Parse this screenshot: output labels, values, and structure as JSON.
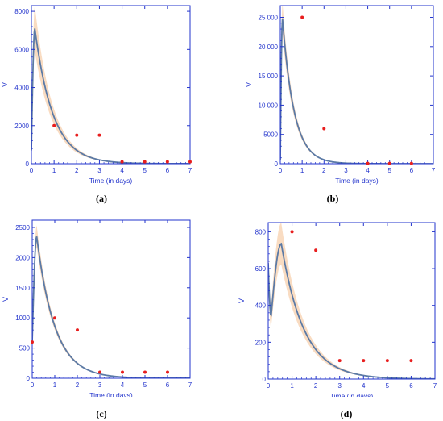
{
  "figure": {
    "captions": [
      "(a)",
      "(b)",
      "(c)",
      "(d)"
    ]
  },
  "chart_data": [
    {
      "type": "line",
      "panel_label": "a",
      "xlabel": "Time (in days)",
      "ylabel": "V",
      "xlim": [
        0,
        7
      ],
      "ylim": [
        0,
        8300
      ],
      "xticks": [
        0,
        1,
        2,
        3,
        4,
        5,
        6,
        7
      ],
      "yticks": [
        0,
        2000,
        4000,
        6000,
        8000
      ],
      "model": {
        "V0": 700,
        "peak_t": 0.15,
        "peak_v": 7100,
        "decay_rate": 1.25,
        "band_frac": 0.16
      },
      "observed": {
        "x": [
          1,
          2,
          3,
          4,
          5,
          6,
          7
        ],
        "y": [
          2000,
          1500,
          1500,
          100,
          100,
          100,
          100
        ]
      },
      "colors": {
        "axis": "#2233cc",
        "model": "#5b7aa6",
        "band": "#f9dcc2",
        "observed": "#e81e1e"
      }
    },
    {
      "type": "line",
      "panel_label": "b",
      "xlabel": "Time (in days)",
      "ylabel": "V",
      "xlim": [
        0,
        7
      ],
      "ylim": [
        0,
        27000
      ],
      "xticks": [
        0,
        1,
        2,
        3,
        4,
        5,
        6,
        7
      ],
      "yticks": [
        0,
        5000,
        10000,
        15000,
        20000,
        25000
      ],
      "model": {
        "V0": 600,
        "peak_t": 0.1,
        "peak_v": 24800,
        "decay_rate": 1.9,
        "band_frac": 0.1
      },
      "observed": {
        "x": [
          1,
          2,
          4,
          5,
          6
        ],
        "y": [
          25000,
          6000,
          50,
          50,
          50
        ]
      },
      "colors": {
        "axis": "#2233cc",
        "model": "#5b7aa6",
        "band": "#f9dcc2",
        "observed": "#e81e1e"
      }
    },
    {
      "type": "line",
      "panel_label": "c",
      "xlabel": "Time (in days)",
      "ylabel": "V",
      "xlim": [
        0,
        7
      ],
      "ylim": [
        0,
        2620
      ],
      "xticks": [
        0,
        1,
        2,
        3,
        4,
        5,
        6,
        7
      ],
      "yticks": [
        0,
        500,
        1000,
        1500,
        2000,
        2500
      ],
      "model": {
        "V0": 600,
        "peak_t": 0.2,
        "peak_v": 2350,
        "decay_rate": 1.25,
        "band_frac": 0.07
      },
      "observed": {
        "x": [
          0,
          1,
          2,
          3,
          4,
          5,
          6
        ],
        "y": [
          600,
          1000,
          800,
          100,
          100,
          100,
          100
        ]
      },
      "colors": {
        "axis": "#2233cc",
        "model": "#5b7aa6",
        "band": "#f9dcc2",
        "observed": "#e81e1e"
      }
    },
    {
      "type": "line",
      "panel_label": "d",
      "xlabel": "Time (in days)",
      "ylabel": "V",
      "xlim": [
        0,
        7
      ],
      "ylim": [
        0,
        850
      ],
      "xticks": [
        0,
        1,
        2,
        3,
        4,
        5,
        6,
        7
      ],
      "yticks": [
        0,
        200,
        400,
        600,
        800
      ],
      "model": {
        "V0": 630,
        "dip_t": 0.12,
        "dip_v": 340,
        "peak_t": 0.55,
        "peak_v": 735,
        "decay_rate": 1.05,
        "band_frac": 0.15
      },
      "observed": {
        "x": [
          1,
          2,
          3,
          4,
          5,
          6
        ],
        "y": [
          800,
          700,
          100,
          100,
          100,
          100
        ]
      },
      "colors": {
        "axis": "#2233cc",
        "model": "#5b7aa6",
        "band": "#f9dcc2",
        "observed": "#e81e1e"
      }
    }
  ]
}
